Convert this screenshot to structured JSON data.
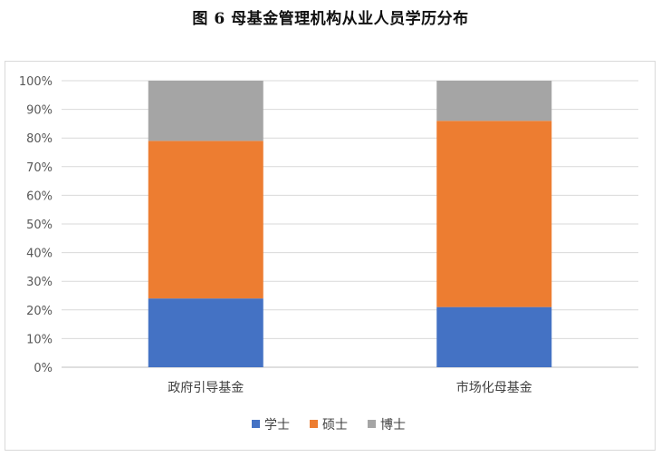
{
  "title": "图 6  母基金管理机构从业人员学历分布",
  "chart_data": {
    "type": "bar",
    "stacked": true,
    "percent": true,
    "categories": [
      "政府引导基金",
      "市场化母基金"
    ],
    "series": [
      {
        "name": "学士",
        "color": "#4472c4",
        "values": [
          24,
          21
        ]
      },
      {
        "name": "硕士",
        "color": "#ed7d31",
        "values": [
          55,
          65
        ]
      },
      {
        "name": "博士",
        "color": "#a5a5a5",
        "values": [
          21,
          14
        ]
      }
    ],
    "ylim": [
      0,
      100
    ],
    "yticks": [
      "0%",
      "10%",
      "20%",
      "30%",
      "40%",
      "50%",
      "60%",
      "70%",
      "80%",
      "90%",
      "100%"
    ],
    "grid": true,
    "legend": "bottom"
  }
}
